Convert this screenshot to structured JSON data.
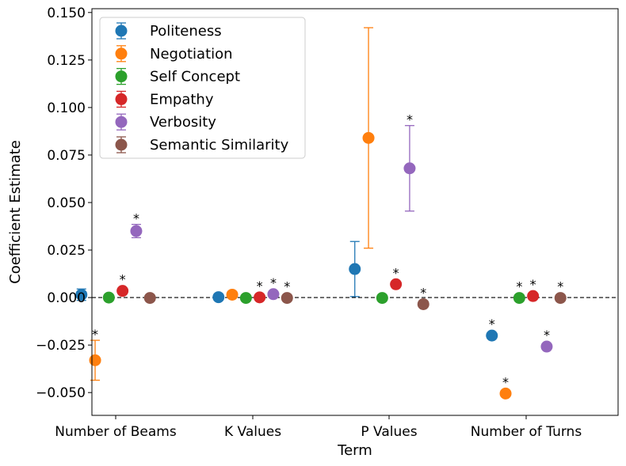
{
  "chart_data": {
    "type": "scatter",
    "title": "",
    "xlabel": "Term",
    "ylabel": "Coefficient Estimate",
    "ylim": [
      -0.062,
      0.152
    ],
    "grid": false,
    "legend_position": "upper-left",
    "reference_line": 0,
    "categories": [
      "Number of Beams",
      "K Values",
      "P Values",
      "Number of Turns"
    ],
    "yticks": [
      "0.150",
      "0.125",
      "0.100",
      "0.075",
      "0.050",
      "0.025",
      "0.000",
      "−0.025",
      "−0.050"
    ],
    "ytick_values": [
      0.15,
      0.125,
      0.1,
      0.075,
      0.05,
      0.025,
      0.0,
      -0.025,
      -0.05
    ],
    "series": [
      {
        "name": "Politeness",
        "color": "#1f77b4",
        "values": [
          0.0015,
          0.0002,
          0.015,
          -0.02
        ],
        "errors": [
          0.003,
          0.0005,
          0.0145,
          0.0005
        ],
        "significant": [
          false,
          false,
          false,
          true
        ]
      },
      {
        "name": "Negotiation",
        "color": "#ff7f0e",
        "values": [
          -0.033,
          0.0015,
          0.084,
          -0.0505
        ],
        "errors": [
          0.0105,
          0.0005,
          0.058,
          0.0005
        ],
        "significant": [
          true,
          false,
          false,
          true
        ]
      },
      {
        "name": "Self Concept",
        "color": "#2ca02c",
        "values": [
          0.0,
          -0.0002,
          -0.0002,
          -0.0002
        ],
        "errors": [
          0.0005,
          0.0005,
          0.0005,
          0.0005
        ],
        "significant": [
          false,
          false,
          false,
          true
        ]
      },
      {
        "name": "Empathy",
        "color": "#d62728",
        "values": [
          0.0035,
          0.0001,
          0.007,
          0.0008
        ],
        "errors": [
          0.0005,
          0.0005,
          0.0005,
          0.0005
        ],
        "significant": [
          true,
          true,
          true,
          true
        ]
      },
      {
        "name": "Verbosity",
        "color": "#9467bd",
        "values": [
          0.035,
          0.0018,
          0.068,
          -0.0258
        ],
        "errors": [
          0.0035,
          0.0005,
          0.0225,
          0.0005
        ],
        "significant": [
          true,
          true,
          true,
          true
        ]
      },
      {
        "name": "Semantic Similarity",
        "color": "#8c564b",
        "values": [
          -0.0002,
          -0.0002,
          -0.0035,
          -0.0002
        ],
        "errors": [
          0.0005,
          0.0005,
          0.0005,
          0.0005
        ],
        "significant": [
          false,
          true,
          true,
          true
        ]
      }
    ],
    "significance_marker": "*"
  }
}
